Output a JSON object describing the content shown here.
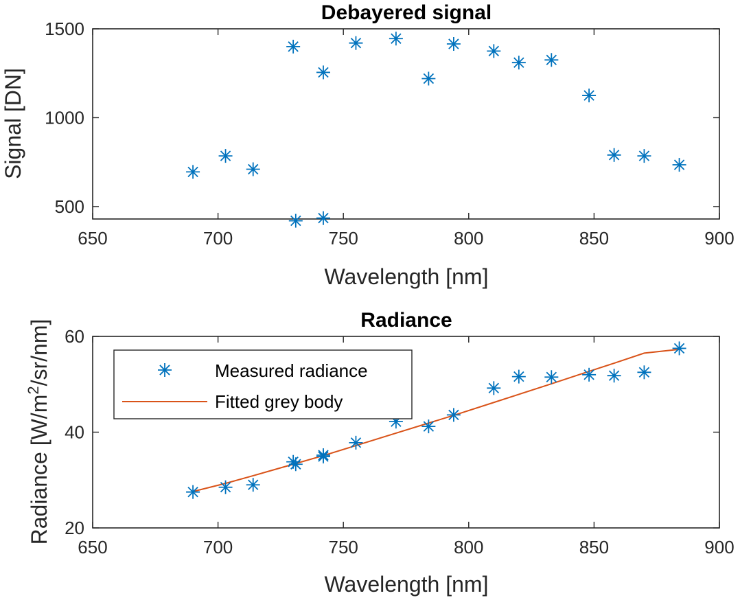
{
  "chart_data": [
    {
      "type": "scatter",
      "title": "Debayered signal",
      "xlabel": "Wavelength [nm]",
      "ylabel": "Signal [DN]",
      "xlim": [
        650,
        900
      ],
      "ylim": [
        430,
        1500
      ],
      "xticks": [
        650,
        700,
        750,
        800,
        850,
        900
      ],
      "yticks": [
        500,
        1000,
        1500
      ],
      "marker": "asterisk",
      "grid": false,
      "series": [
        {
          "color": "#0072BD",
          "x": [
            690,
            703,
            714,
            730,
            731,
            742,
            742,
            755,
            771,
            784,
            794,
            810,
            820,
            833,
            848,
            858,
            870,
            884
          ],
          "y": [
            695,
            785,
            710,
            1400,
            420,
            1255,
            435,
            1420,
            1445,
            1220,
            1415,
            1375,
            1310,
            1325,
            1125,
            790,
            785,
            735
          ]
        }
      ]
    },
    {
      "type": "scatter",
      "title": "Radiance",
      "xlabel": "Wavelength [nm]",
      "ylabel_prefix": "Radiance [W/m",
      "ylabel_sup": "2",
      "ylabel_suffix": "/sr/nm]",
      "xlim": [
        650,
        900
      ],
      "ylim": [
        20,
        60
      ],
      "xticks": [
        650,
        700,
        750,
        800,
        850,
        900
      ],
      "yticks": [
        20,
        40,
        60
      ],
      "grid": false,
      "legend": {
        "position": "top-left",
        "entries": [
          "Measured radiance",
          "Fitted grey body"
        ]
      },
      "series": [
        {
          "name": "Measured radiance",
          "marker": "asterisk",
          "color": "#0072BD",
          "x": [
            690,
            703,
            714,
            730,
            731,
            742,
            742,
            755,
            771,
            784,
            794,
            810,
            820,
            833,
            848,
            858,
            870,
            884
          ],
          "y": [
            27.5,
            28.5,
            29.0,
            33.8,
            33.3,
            35.2,
            34.9,
            37.8,
            42.2,
            41.2,
            43.6,
            49.2,
            51.6,
            51.5,
            52.0,
            51.8,
            52.5,
            57.5
          ]
        },
        {
          "name": "Fitted grey body",
          "marker": "line",
          "color": "#D95319",
          "x": [
            690,
            703,
            714,
            730,
            742,
            755,
            771,
            784,
            794,
            810,
            820,
            833,
            848,
            858,
            870,
            884
          ],
          "y": [
            27.6,
            29.3,
            30.9,
            33.3,
            35.1,
            37.2,
            39.8,
            41.9,
            43.5,
            46.2,
            47.9,
            50.1,
            52.7,
            54.4,
            56.5,
            57.3
          ]
        }
      ]
    }
  ]
}
